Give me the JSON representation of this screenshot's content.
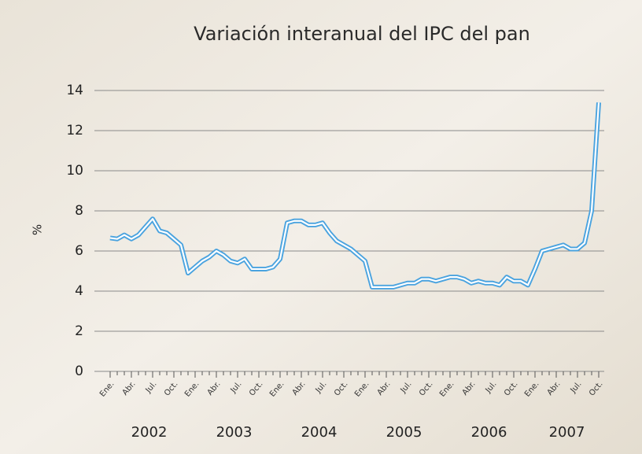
{
  "chart_data": {
    "type": "line",
    "title": "Variación interanual del IPC del pan",
    "y_label": "%",
    "categories": [
      "Ene.",
      null,
      null,
      "Abr.",
      null,
      null,
      "Jul.",
      null,
      null,
      "Oct.",
      null,
      null,
      "Ene.",
      null,
      null,
      "Abr.",
      null,
      null,
      "Jul.",
      null,
      null,
      "Oct.",
      null,
      null,
      "Ene.",
      null,
      null,
      "Abr.",
      null,
      null,
      "Jul.",
      null,
      null,
      "Oct.",
      null,
      null,
      "Ene.",
      null,
      null,
      "Abr.",
      null,
      null,
      "Jul.",
      null,
      null,
      "Oct.",
      null,
      null,
      "Ene.",
      null,
      null,
      "Abr.",
      null,
      null,
      "Jul.",
      null,
      null,
      "Oct.",
      null,
      null,
      "Ene.",
      null,
      null,
      "Abr.",
      null,
      null,
      "Jul.",
      null,
      null,
      "Oct."
    ],
    "years": [
      "2002",
      "2003",
      "2004",
      "2005",
      "2006",
      "2007"
    ],
    "series": [
      {
        "color": "#4aa3df",
        "values": [
          6.65,
          6.6,
          6.8,
          6.6,
          6.8,
          7.2,
          7.6,
          7.0,
          6.9,
          6.6,
          6.3,
          4.9,
          5.2,
          5.5,
          5.7,
          6.0,
          5.8,
          5.5,
          5.4,
          5.6,
          5.1,
          5.1,
          5.1,
          5.2,
          5.6,
          7.4,
          7.5,
          7.5,
          7.3,
          7.3,
          7.4,
          6.9,
          6.5,
          6.3,
          6.1,
          5.8,
          5.5,
          4.2,
          4.2,
          4.2,
          4.2,
          4.3,
          4.4,
          4.4,
          4.6,
          4.6,
          4.5,
          4.6,
          4.7,
          4.7,
          4.6,
          4.4,
          4.5,
          4.4,
          4.4,
          4.3,
          4.7,
          4.5,
          4.5,
          4.3,
          5.1,
          6.0,
          6.1,
          6.2,
          6.3,
          6.1,
          6.1,
          6.4,
          8.0,
          13.4
        ]
      }
    ],
    "ylim": [
      0,
      14
    ],
    "yticks": [
      0,
      2,
      4,
      6,
      8,
      10,
      12,
      14
    ],
    "grid": true
  }
}
